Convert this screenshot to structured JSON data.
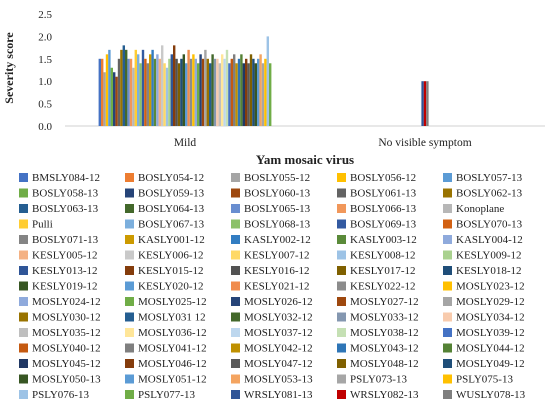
{
  "chart_data": {
    "type": "bar",
    "ylabel": "Severity score",
    "xlabel": "Yam mosaic virus",
    "ylim": [
      0,
      2.5
    ],
    "yticks": [
      "0.0",
      "0.5",
      "1.0",
      "1.5",
      "2.0",
      "2.5"
    ],
    "grid": false,
    "legend_position": "bottom",
    "categories": [
      "Mild",
      "No visible symptom"
    ],
    "series": [
      {
        "name": "BMSLY084-12",
        "color": "#4472C4",
        "values": [
          1.5,
          null
        ]
      },
      {
        "name": "BOSLY054-12",
        "color": "#ED7D31",
        "values": [
          1.5,
          null
        ]
      },
      {
        "name": "BOSLY055-12",
        "color": "#A5A5A5",
        "values": [
          1.2,
          null
        ]
      },
      {
        "name": "BOSLY056-12",
        "color": "#FFC000",
        "values": [
          1.6,
          null
        ]
      },
      {
        "name": "BOSLY057-13",
        "color": "#5B9BD5",
        "values": [
          1.7,
          null
        ]
      },
      {
        "name": "BOSLY058-13",
        "color": "#70AD47",
        "values": [
          1.3,
          null
        ]
      },
      {
        "name": "BOSLY059-13",
        "color": "#264478",
        "values": [
          1.2,
          null
        ]
      },
      {
        "name": "BOSLY060-13",
        "color": "#9E480E",
        "values": [
          1.1,
          null
        ]
      },
      {
        "name": "BOSLY061-13",
        "color": "#636363",
        "values": [
          1.5,
          null
        ]
      },
      {
        "name": "BOSLY062-13",
        "color": "#997300",
        "values": [
          1.7,
          null
        ]
      },
      {
        "name": "BOSLY063-13",
        "color": "#255E91",
        "values": [
          1.8,
          null
        ]
      },
      {
        "name": "BOSLY064-13",
        "color": "#43682B",
        "values": [
          1.7,
          null
        ]
      },
      {
        "name": "BOSLY065-13",
        "color": "#698ED0",
        "values": [
          1.5,
          null
        ]
      },
      {
        "name": "BOSLY066-13",
        "color": "#F1975A",
        "values": [
          1.5,
          null
        ]
      },
      {
        "name": "Konoplane",
        "color": "#B7B7B7",
        "values": [
          1.3,
          null
        ]
      },
      {
        "name": "Pulli",
        "color": "#FFCD33",
        "values": [
          1.7,
          null
        ]
      },
      {
        "name": "BOSLY067-13",
        "color": "#7CAFDD",
        "values": [
          1.6,
          null
        ]
      },
      {
        "name": "BOSLY068-13",
        "color": "#8CC168",
        "values": [
          1.4,
          null
        ]
      },
      {
        "name": "BOSLY069-13",
        "color": "#335AA1",
        "values": [
          1.7,
          null
        ]
      },
      {
        "name": "BOSLY070-13",
        "color": "#D26012",
        "values": [
          1.5,
          null
        ]
      },
      {
        "name": "BOSLY071-13",
        "color": "#848484",
        "values": [
          1.4,
          null
        ]
      },
      {
        "name": "KASLY001-12",
        "color": "#CC9A00",
        "values": [
          1.6,
          null
        ]
      },
      {
        "name": "KASLY002-12",
        "color": "#327DC2",
        "values": [
          1.7,
          null
        ]
      },
      {
        "name": "KASLY003-12",
        "color": "#5A8A39",
        "values": [
          1.5,
          null
        ]
      },
      {
        "name": "KASLY004-12",
        "color": "#8FAADC",
        "values": [
          1.6,
          null
        ]
      },
      {
        "name": "KESLY005-12",
        "color": "#F4B183",
        "values": [
          1.5,
          null
        ]
      },
      {
        "name": "KESLY006-12",
        "color": "#C9C9C9",
        "values": [
          1.8,
          null
        ]
      },
      {
        "name": "KESLY007-12",
        "color": "#FFD966",
        "values": [
          1.4,
          null
        ]
      },
      {
        "name": "KESLY008-12",
        "color": "#9DC3E6",
        "values": [
          1.3,
          null
        ]
      },
      {
        "name": "KESLY009-12",
        "color": "#A9D18E",
        "values": [
          1.5,
          null
        ]
      },
      {
        "name": "KESLY013-12",
        "color": "#2F5597",
        "values": [
          1.6,
          null
        ]
      },
      {
        "name": "KESLY015-12",
        "color": "#843C0C",
        "values": [
          1.8,
          null
        ]
      },
      {
        "name": "KESLY016-12",
        "color": "#525252",
        "values": [
          1.5,
          null
        ]
      },
      {
        "name": "KESLY017-12",
        "color": "#7F6000",
        "values": [
          1.4,
          null
        ]
      },
      {
        "name": "KESLY018-12",
        "color": "#1F4E79",
        "values": [
          1.5,
          null
        ]
      },
      {
        "name": "KESLY019-12",
        "color": "#375623",
        "values": [
          1.6,
          null
        ]
      },
      {
        "name": "KESLY020-12",
        "color": "#5B9BD5",
        "values": [
          1.4,
          null
        ]
      },
      {
        "name": "KESLY021-12",
        "color": "#F08C4D",
        "values": [
          1.7,
          null
        ]
      },
      {
        "name": "KESLY022-12",
        "color": "#8C8C8C",
        "values": [
          1.5,
          null
        ]
      },
      {
        "name": "MOSLY023-12",
        "color": "#FFC000",
        "values": [
          1.6,
          null
        ]
      },
      {
        "name": "MOSLY024-12",
        "color": "#8FAADC",
        "values": [
          1.5,
          null
        ]
      },
      {
        "name": "MOSLY025-12",
        "color": "#70AD47",
        "values": [
          1.4,
          null
        ]
      },
      {
        "name": "MOSLY026-12",
        "color": "#264478",
        "values": [
          1.6,
          null
        ]
      },
      {
        "name": "MOSLY027-12",
        "color": "#9E480E",
        "values": [
          1.5,
          null
        ]
      },
      {
        "name": "MOSLY029-12",
        "color": "#A5A5A5",
        "values": [
          1.7,
          null
        ]
      },
      {
        "name": "MOSLY030-12",
        "color": "#997300",
        "values": [
          1.5,
          null
        ]
      },
      {
        "name": "MOSLY031 12",
        "color": "#255E91",
        "values": [
          1.4,
          null
        ]
      },
      {
        "name": "MOSLY032-12",
        "color": "#43682B",
        "values": [
          1.6,
          null
        ]
      },
      {
        "name": "MOSLY033-12",
        "color": "#8497B0",
        "values": [
          1.5,
          null
        ]
      },
      {
        "name": "MOSLY034-12",
        "color": "#F8CBAD",
        "values": [
          1.5,
          null
        ]
      },
      {
        "name": "MOSLY035-12",
        "color": "#BFBFBF",
        "values": [
          1.4,
          null
        ]
      },
      {
        "name": "MOSLY036-12",
        "color": "#FFE699",
        "values": [
          1.6,
          null
        ]
      },
      {
        "name": "MOSLY037-12",
        "color": "#BDD7EE",
        "values": [
          1.5,
          null
        ]
      },
      {
        "name": "MOSLY038-12",
        "color": "#C5E0B4",
        "values": [
          1.7,
          null
        ]
      },
      {
        "name": "MOSLY039-12",
        "color": "#4472C4",
        "values": [
          1.4,
          null
        ]
      },
      {
        "name": "MOSLY040-12",
        "color": "#C55A11",
        "values": [
          1.5,
          null
        ]
      },
      {
        "name": "MOSLY041-12",
        "color": "#7F7F7F",
        "values": [
          1.6,
          null
        ]
      },
      {
        "name": "MOSLY042-12",
        "color": "#BF9000",
        "values": [
          1.4,
          null
        ]
      },
      {
        "name": "MOSLY043-12",
        "color": "#2E75B6",
        "values": [
          1.5,
          null
        ]
      },
      {
        "name": "MOSLY044-12",
        "color": "#548235",
        "values": [
          1.6,
          null
        ]
      },
      {
        "name": "MOSLY045-12",
        "color": "#203864",
        "values": [
          1.4,
          null
        ]
      },
      {
        "name": "MOSLY046-12",
        "color": "#843C0C",
        "values": [
          1.5,
          null
        ]
      },
      {
        "name": "MOSLY047-12",
        "color": "#595959",
        "values": [
          1.4,
          null
        ]
      },
      {
        "name": "MOSLY048-12",
        "color": "#7F6000",
        "values": [
          1.6,
          null
        ]
      },
      {
        "name": "MOSLY049-12",
        "color": "#1F4E79",
        "values": [
          1.5,
          null
        ]
      },
      {
        "name": "MOSLY050-13",
        "color": "#375623",
        "values": [
          1.4,
          null
        ]
      },
      {
        "name": "MOSLY051-12",
        "color": "#5B9BD5",
        "values": [
          1.5,
          null
        ]
      },
      {
        "name": "MOSLY053-13",
        "color": "#F4A460",
        "values": [
          1.6,
          null
        ]
      },
      {
        "name": "PSLY073-13",
        "color": "#A6A6A6",
        "values": [
          1.4,
          null
        ]
      },
      {
        "name": "PSLY075-13",
        "color": "#FFC000",
        "values": [
          1.5,
          null
        ]
      },
      {
        "name": "PSLY076-13",
        "color": "#9DC3E6",
        "values": [
          2.0,
          null
        ]
      },
      {
        "name": "PSLY077-13",
        "color": "#70AD47",
        "values": [
          1.4,
          null
        ]
      },
      {
        "name": "WRSLY081-13",
        "color": "#2F5597",
        "values": [
          null,
          1.0
        ]
      },
      {
        "name": "WRSLY082-13",
        "color": "#C00000",
        "values": [
          null,
          1.0
        ]
      },
      {
        "name": "WUSLY078-13",
        "color": "#7F7F7F",
        "values": [
          null,
          1.0
        ]
      }
    ]
  }
}
